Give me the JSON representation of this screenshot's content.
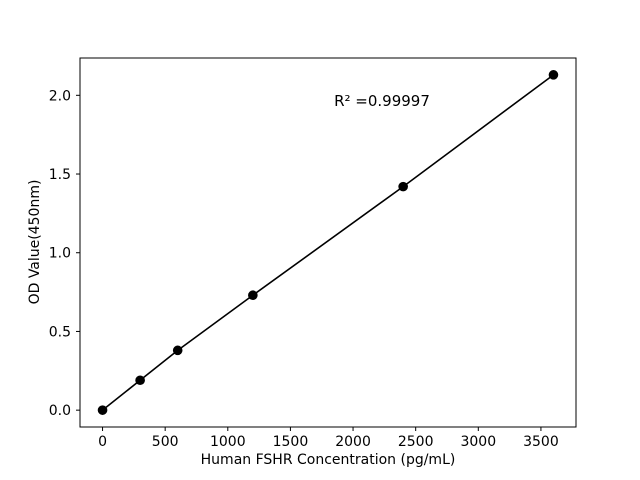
{
  "chart_data": {
    "type": "scatter",
    "title": "",
    "xlabel": "Human FSHR Concentration (pg/mL)",
    "ylabel": "OD Value(450nm)",
    "annotation": "R² =0.99997",
    "r_squared": 0.99997,
    "x": [
      0,
      300,
      600,
      1200,
      2400,
      3600
    ],
    "y": [
      0.0,
      0.19,
      0.38,
      0.73,
      1.42,
      2.13
    ],
    "line": "linear-fit-through-points",
    "xticks": [
      0,
      500,
      1000,
      1500,
      2000,
      2500,
      3000,
      3500
    ],
    "yticks": [
      0.0,
      0.5,
      1.0,
      1.5,
      2.0
    ],
    "xlim": [
      -180,
      3780
    ],
    "ylim": [
      -0.107,
      2.237
    ],
    "grid": false,
    "legend": null,
    "colors": {
      "line": "#000000",
      "marker": "#000000",
      "axis": "#000000",
      "text": "#000000",
      "background": "#ffffff"
    }
  }
}
